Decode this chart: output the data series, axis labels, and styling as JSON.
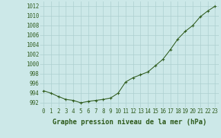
{
  "x": [
    0,
    1,
    2,
    3,
    4,
    5,
    6,
    7,
    8,
    9,
    10,
    11,
    12,
    13,
    14,
    15,
    16,
    17,
    18,
    19,
    20,
    21,
    22,
    23
  ],
  "y": [
    994.5,
    994.0,
    993.3,
    992.7,
    992.5,
    992.0,
    992.3,
    992.5,
    992.7,
    993.0,
    994.0,
    996.3,
    997.2,
    997.8,
    998.4,
    999.7,
    1001.0,
    1003.0,
    1005.2,
    1006.8,
    1008.0,
    1009.8,
    1011.0,
    1012.0
  ],
  "line_color": "#2d5a1b",
  "marker": "+",
  "marker_size": 3,
  "bg_color": "#cce8e8",
  "grid_color": "#aacece",
  "xlabel": "Graphe pression niveau de la mer (hPa)",
  "xlabel_fontsize": 7,
  "xlabel_color": "#2d5a1b",
  "ylabel_ticks": [
    992,
    994,
    996,
    998,
    1000,
    1002,
    1004,
    1006,
    1008,
    1010,
    1012
  ],
  "ylim": [
    991.0,
    1013.0
  ],
  "xlim": [
    -0.5,
    23.5
  ],
  "xticks": [
    0,
    1,
    2,
    3,
    4,
    5,
    6,
    7,
    8,
    9,
    10,
    11,
    12,
    13,
    14,
    15,
    16,
    17,
    18,
    19,
    20,
    21,
    22,
    23
  ],
  "tick_fontsize": 5.5,
  "tick_color": "#2d5a1b",
  "line_width": 0.8,
  "marker_edge_width": 0.8
}
